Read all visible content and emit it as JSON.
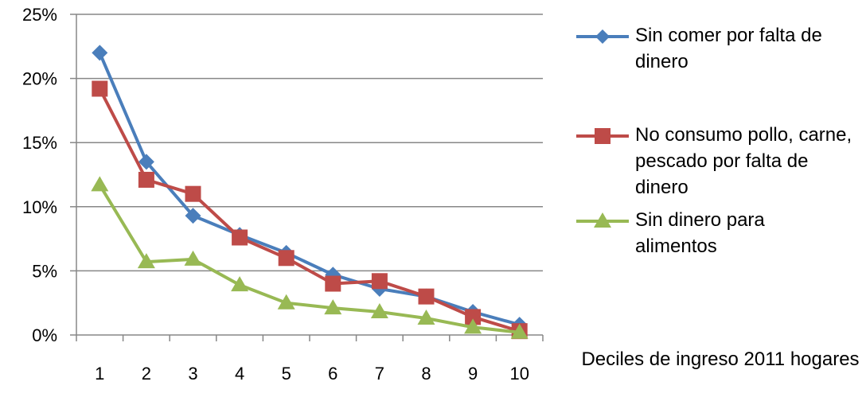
{
  "chart_data": {
    "type": "line",
    "categories": [
      "1",
      "2",
      "3",
      "4",
      "5",
      "6",
      "7",
      "8",
      "9",
      "10"
    ],
    "ylim": [
      0,
      25
    ],
    "yticks": [
      "0%",
      "5%",
      "10%",
      "15%",
      "20%",
      "25%"
    ],
    "ytick_values": [
      0,
      5,
      10,
      15,
      20,
      25
    ],
    "grid": true,
    "legend_position": "right",
    "xlabel": "Deciles de ingreso  2011 hogares",
    "series": [
      {
        "name": "Sin comer por falta de dinero",
        "color": "#4a7ebb",
        "marker": "diamond",
        "values": [
          22.0,
          13.5,
          9.3,
          7.8,
          6.4,
          4.7,
          3.6,
          3.0,
          1.8,
          0.8
        ]
      },
      {
        "name": "No consumo pollo, carne, pescado por falta de dinero",
        "color": "#be4b48",
        "marker": "square",
        "values": [
          19.2,
          12.1,
          11.0,
          7.6,
          6.0,
          4.0,
          4.2,
          3.0,
          1.4,
          0.3
        ]
      },
      {
        "name": "Sin dinero para alimentos",
        "color": "#98b954",
        "marker": "triangle",
        "values": [
          11.7,
          5.7,
          5.9,
          3.9,
          2.5,
          2.1,
          1.8,
          1.3,
          0.6,
          0.2
        ]
      }
    ]
  },
  "legend": {
    "items": [
      {
        "label": "Sin comer por falta de dinero"
      },
      {
        "label": "No consumo pollo, carne, pescado por falta de dinero"
      },
      {
        "label": "Sin dinero para alimentos"
      }
    ]
  }
}
